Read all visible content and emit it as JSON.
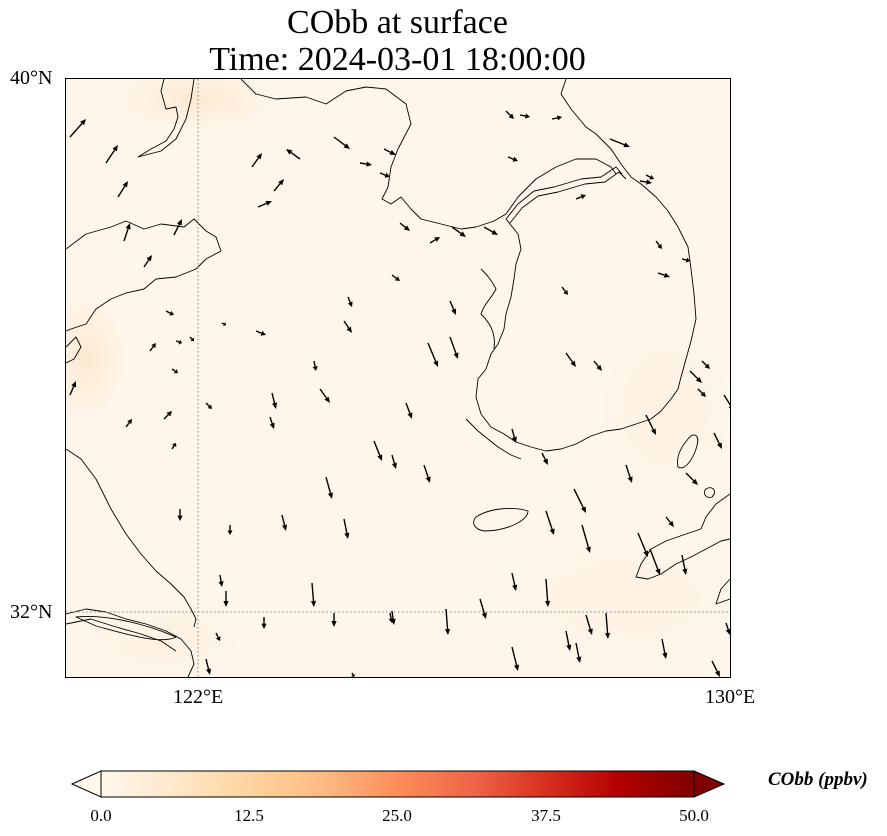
{
  "title": {
    "line1": "CObb at surface",
    "line2": "Time: 2024-03-01 18:00:00"
  },
  "axes": {
    "lat_labels": [
      "40°N",
      "32°N"
    ],
    "lon_labels": [
      "122°E",
      "130°E"
    ],
    "lat_range": [
      31.2,
      40.0
    ],
    "lon_range": [
      120.0,
      130.0
    ],
    "gridlines": "dotted, at 32°N and 122°E"
  },
  "colorbar": {
    "title": "CObb (ppbv)",
    "tick_labels": [
      "0.0",
      "12.5",
      "25.0",
      "37.5",
      "50.0"
    ],
    "min": 0.0,
    "max": 50.0,
    "colormap": "OrRd",
    "colors": [
      "#fff7ec",
      "#fee8c8",
      "#fdd49e",
      "#fdbb84",
      "#fc8d59",
      "#ef6548",
      "#d7301f",
      "#b30000",
      "#7f0000"
    ],
    "extend": "both"
  },
  "colors": {
    "background_field": "#fef6ea",
    "coastline": "#000000",
    "gridline": "#808080",
    "arrow": "#000000"
  },
  "chart_data": {
    "type": "map",
    "field": "CObb surface concentration",
    "field_value_approx_ppbv": 1.0,
    "vector_field": "surface wind (quiver)"
  }
}
